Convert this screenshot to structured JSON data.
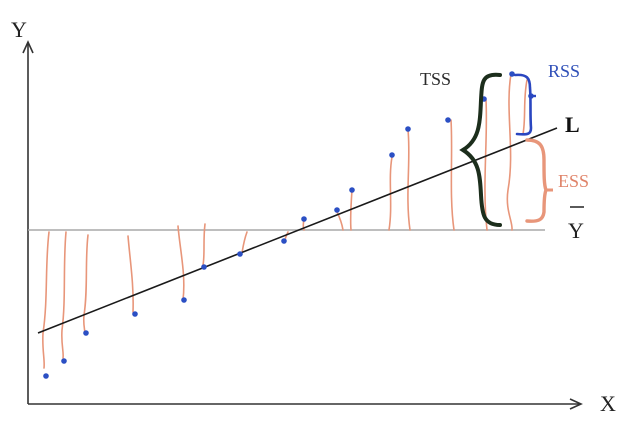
{
  "labels": {
    "y_axis": "Y",
    "x_axis": "X",
    "line": "L",
    "mean": "Y",
    "tss": "TSS",
    "rss": "RSS",
    "ess": "ESS"
  },
  "colors": {
    "axis": "#333333",
    "regression_line": "#1a1a1a",
    "mean_line": "#a8a8a8",
    "points": "#2b4fc4",
    "deviation_lines": "#e8967a",
    "tss_brace": "#1c2e1c",
    "rss_brace": "#2a46c0",
    "ess_brace": "#e8967a",
    "tss_text": "#2b2b2b",
    "rss_text": "#3050b8",
    "ess_text": "#e0846a"
  }
}
